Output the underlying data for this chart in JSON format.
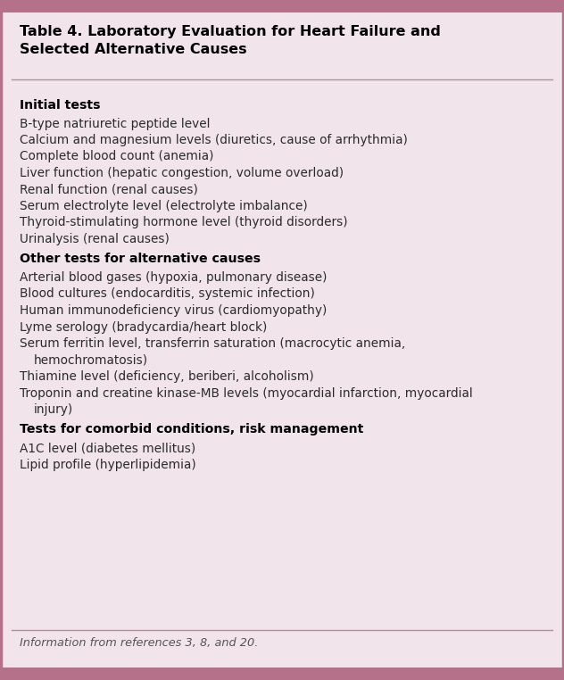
{
  "title_line1": "Table 4. Laboratory Evaluation for Heart Failure and",
  "title_line2": "Selected Alternative Causes",
  "background_color": "#f2e4eb",
  "border_color": "#b5708a",
  "title_bg_color": "#f2e4eb",
  "top_bar_color": "#b5708a",
  "bottom_bar_color": "#b5708a",
  "line_color": "#b09098",
  "sections": [
    {
      "header": "Initial tests",
      "items": [
        [
          "B-type natriuretic peptide level"
        ],
        [
          "Calcium and magnesium levels (diuretics, cause of arrhythmia)"
        ],
        [
          "Complete blood count (anemia)"
        ],
        [
          "Liver function (hepatic congestion, volume overload)"
        ],
        [
          "Renal function (renal causes)"
        ],
        [
          "Serum electrolyte level (electrolyte imbalance)"
        ],
        [
          "Thyroid-stimulating hormone level (thyroid disorders)"
        ],
        [
          "Urinalysis (renal causes)"
        ]
      ]
    },
    {
      "header": "Other tests for alternative causes",
      "items": [
        [
          "Arterial blood gases (hypoxia, pulmonary disease)"
        ],
        [
          "Blood cultures (endocarditis, systemic infection)"
        ],
        [
          "Human immunodeficiency virus (cardiomyopathy)"
        ],
        [
          "Lyme serology (bradycardia/heart block)"
        ],
        [
          "Serum ferritin level, transferrin saturation (macrocytic anemia,",
          "   hemochromatosis)"
        ],
        [
          "Thiamine level (deficiency, beriberi, alcoholism)"
        ],
        [
          "Troponin and creatine kinase-MB levels (myocardial infarction, myocardial",
          "   injury)"
        ]
      ]
    },
    {
      "header": "Tests for comorbid conditions, risk management",
      "items": [
        [
          "A1C level (diabetes mellitus)"
        ],
        [
          "Lipid profile (hyperlipidemia)"
        ]
      ]
    }
  ],
  "footnote": "Information from references 3, 8, and 20.",
  "text_color": "#2a2a2a",
  "header_color": "#000000",
  "title_color": "#000000",
  "footnote_color": "#555555",
  "font_size": 9.8,
  "header_font_size": 10.2,
  "title_font_size": 11.5
}
